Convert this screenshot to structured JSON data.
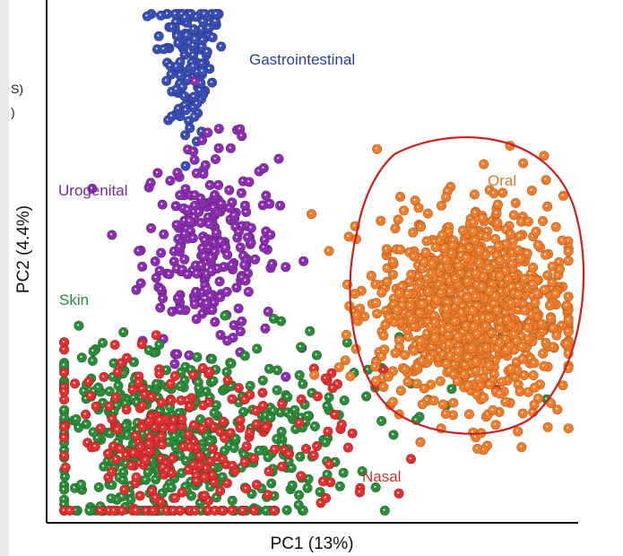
{
  "edge_fragments": {
    "top_left": "S)",
    "top_left_2": ")"
  },
  "chart_data": {
    "type": "scatter",
    "title": "",
    "xlabel": "PC1 (13%)",
    "ylabel": "PC2 (4.4%)",
    "xlim": [
      0,
      100
    ],
    "ylim": [
      0,
      100
    ],
    "grid": false,
    "legend": "labels placed next to clusters",
    "series": [
      {
        "name": "Gastrointestinal",
        "color": "#3a4fb5",
        "center": [
          26,
          90
        ],
        "spread": [
          3.5,
          8
        ],
        "count": 140
      },
      {
        "name": "Urogenital",
        "color": "#8b2fb0",
        "center": [
          30,
          53
        ],
        "spread": [
          6.5,
          10
        ],
        "count": 260
      },
      {
        "name": "Skin",
        "color": "#2e8b3c",
        "center": [
          22,
          15
        ],
        "spread": [
          14,
          10
        ],
        "count": 520
      },
      {
        "name": "Nasal",
        "color": "#e03030",
        "center": [
          24,
          14
        ],
        "spread": [
          13,
          9
        ],
        "count": 260
      },
      {
        "name": "Oral",
        "color": "#f07d2b",
        "center": [
          80,
          41
        ],
        "spread": [
          9,
          11
        ],
        "count": 1000
      }
    ],
    "annotations": [
      {
        "type": "hand-drawn ellipse",
        "color": "#cc2020",
        "around": "Oral"
      }
    ],
    "label_colors": {
      "Gastrointestinal": "#2a3f9e",
      "Urogenital": "#7a2a9e",
      "Skin": "#2e8b3c",
      "Nasal": "#c0392b",
      "Oral": "#e07a2e"
    }
  }
}
